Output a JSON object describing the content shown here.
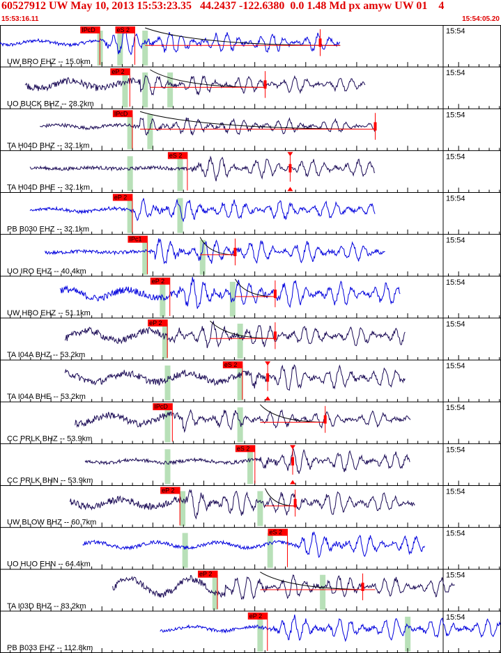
{
  "header": {
    "title": "60527912 UW May 10, 2013 15:53:23.35   44.2437 -122.6380  0.0 1.48 Md px amyw UW 01    4",
    "start_time": "15:53:16.11",
    "end_time": "15:54:05.20"
  },
  "colors": {
    "header": "#e00000",
    "pick_box": "#ff0000",
    "blue": "#0000dd",
    "dark": "#1a0a55",
    "green": "#b8e0b8"
  },
  "chart_data": {
    "type": "line",
    "title": "60527912 UW May 10, 2013 15:53:23.35   44.2437 -122.6380  0.0 1.48 Md px amyw UW 01    4",
    "x_range": [
      "15:53:16.11",
      "15:54:05.20"
    ],
    "minute_label": "15:54",
    "traces": [
      {
        "label": "UW BRO EHZ -- 15.0km",
        "color": "blue",
        "start": 0.0,
        "end": 0.68,
        "amp": 0.55,
        "env": 0.15,
        "onset": 0.21,
        "picks": [
          {
            "text": "IPcD",
            "x": 0.18
          },
          {
            "text": "eS 2",
            "x": 0.25
          }
        ],
        "greens": [
          0.2,
          0.24,
          0.29
        ],
        "marker": 0.64,
        "coda": [
          0.29,
          0.68
        ]
      },
      {
        "label": "UO BUCK BHZ -- 28.2km",
        "color": "dark",
        "start": 0.05,
        "end": 0.73,
        "amp": 0.45,
        "env": 0.25,
        "onset": 0.28,
        "picks": [
          {
            "text": "eP 2",
            "x": 0.24
          }
        ],
        "greens": [
          0.25,
          0.29,
          0.34
        ],
        "marker": 0.53,
        "coda": [
          0.3,
          0.53
        ]
      },
      {
        "label": "TA H04D BHZ -- 32.1km",
        "color": "dark",
        "start": 0.08,
        "end": 0.75,
        "amp": 0.4,
        "env": 0.1,
        "onset": 0.28,
        "picks": [
          {
            "text": "IPcD",
            "x": 0.245
          }
        ],
        "greens": [
          0.26,
          0.3
        ],
        "marker": 0.75,
        "coda": [
          0.28,
          0.75
        ]
      },
      {
        "label": "TA H04D BHE -- 32.1km",
        "color": "dark",
        "start": 0.06,
        "end": 0.75,
        "amp": 0.5,
        "env": 0.05,
        "onset": 0.38,
        "picks": [
          {
            "text": "eS 2",
            "x": 0.355
          }
        ],
        "greens": [
          0.26,
          0.36
        ],
        "marker": 0.58,
        "triangles": [
          0.58
        ],
        "coda": null
      },
      {
        "label": "PB B030 EHZ -- 32.1km",
        "color": "blue",
        "start": 0.06,
        "end": 0.75,
        "amp": 0.5,
        "env": 0.12,
        "onset": 0.27,
        "picks": [
          {
            "text": "eP 2",
            "x": 0.245
          }
        ],
        "greens": [
          0.26,
          0.36
        ],
        "marker": null,
        "coda": null
      },
      {
        "label": "UO IRO EHZ -- 40.4km",
        "color": "blue",
        "start": 0.09,
        "end": 0.77,
        "amp": 0.55,
        "env": 0.05,
        "onset": 0.31,
        "picks": [
          {
            "text": "IPc1",
            "x": 0.275
          }
        ],
        "greens": [
          0.29,
          0.405
        ],
        "marker": 0.47,
        "coda": [
          0.4,
          0.47
        ]
      },
      {
        "label": "UW HBO EHZ -- 51.1km",
        "color": "blue",
        "start": 0.12,
        "end": 0.8,
        "amp": 0.65,
        "env": 0.3,
        "onset": 0.35,
        "picks": [
          {
            "text": "eP 2",
            "x": 0.32
          }
        ],
        "greens": [
          0.325,
          0.465
        ],
        "marker": 0.55,
        "coda": [
          0.47,
          0.55
        ]
      },
      {
        "label": "TA I04A BHZ -- 53.2km",
        "color": "dark",
        "start": 0.13,
        "end": 0.81,
        "amp": 0.55,
        "env": 0.35,
        "onset": 0.35,
        "picks": [
          {
            "text": "eP 2",
            "x": 0.315
          }
        ],
        "greens": [
          0.33,
          0.48
        ],
        "marker": 0.55,
        "coda": [
          0.42,
          0.55
        ]
      },
      {
        "label": "TA I04A BHE -- 53.2km",
        "color": "dark",
        "start": 0.13,
        "end": 0.81,
        "amp": 0.6,
        "env": 0.3,
        "onset": 0.5,
        "picks": [
          {
            "text": "eS 2",
            "x": 0.465
          }
        ],
        "greens": [
          0.335,
          0.48
        ],
        "marker": 0.535,
        "triangles": [
          0.535
        ],
        "coda": null
      },
      {
        "label": "CC PRLK BHZ -- 53.9km",
        "color": "dark",
        "start": 0.15,
        "end": 0.82,
        "amp": 0.45,
        "env": 0.3,
        "onset": 0.365,
        "picks": [
          {
            "text": "IPcD",
            "x": 0.325
          }
        ],
        "greens": [
          0.335,
          0.48
        ],
        "marker": 0.65,
        "coda": [
          0.52,
          0.65
        ]
      },
      {
        "label": "CC PRLK BHN -- 53.9km",
        "color": "dark",
        "start": 0.17,
        "end": 0.82,
        "amp": 0.55,
        "env": 0.1,
        "onset": 0.52,
        "picks": [
          {
            "text": "eS 2",
            "x": 0.49
          }
        ],
        "greens": [
          0.335,
          0.5
        ],
        "marker": 0.585,
        "triangles": [
          0.585
        ],
        "coda": null
      },
      {
        "label": "UW BLOW BHZ -- 60.7km",
        "color": "dark",
        "start": 0.14,
        "end": 0.83,
        "amp": 0.6,
        "env": 0.25,
        "onset": 0.375,
        "picks": [
          {
            "text": "eP 2",
            "x": 0.34
          }
        ],
        "greens": [
          0.365,
          0.52
        ],
        "marker": 0.59,
        "coda": [
          0.53,
          0.59
        ]
      },
      {
        "label": "UO HUO EHN -- 64.4km",
        "color": "blue",
        "start": 0.165,
        "end": 0.85,
        "amp": 0.55,
        "env": 0.2,
        "onset": 0.59,
        "picks": [
          {
            "text": "eS 2",
            "x": 0.555
          }
        ],
        "greens": [
          0.37,
          0.54
        ],
        "marker": null,
        "coda": null
      },
      {
        "label": "TA I03D BHZ -- 83.2km",
        "color": "dark",
        "start": 0.225,
        "end": 0.91,
        "amp": 0.55,
        "env": 0.55,
        "onset": 0.45,
        "picks": [
          {
            "text": "eP 2",
            "x": 0.415
          }
        ],
        "greens": [
          0.43,
          0.645
        ],
        "marker": 0.725,
        "coda": [
          0.52,
          0.75
        ]
      },
      {
        "label": "PB B033 EHZ -- 112.8km",
        "color": "blue",
        "start": 0.32,
        "end": 1.0,
        "amp": 0.55,
        "env": 0.15,
        "onset": 0.545,
        "picks": [
          {
            "text": "eP 2",
            "x": 0.515
          }
        ],
        "greens": [
          0.52,
          0.815
        ],
        "marker": null,
        "coda": null
      }
    ],
    "grid": true
  }
}
